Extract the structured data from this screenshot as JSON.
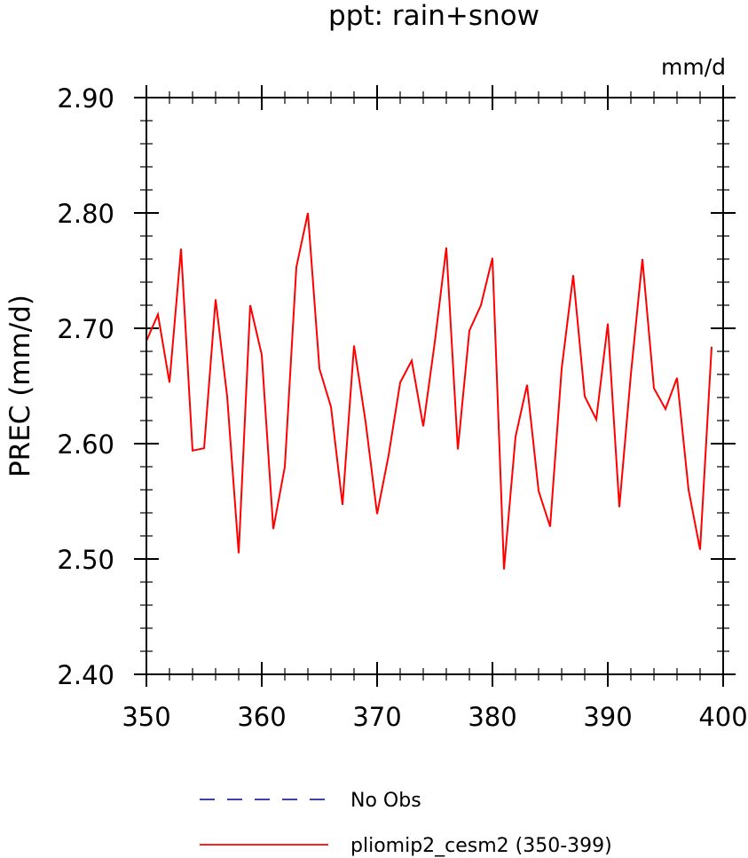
{
  "chart_data": {
    "type": "line",
    "title": "ppt: rain+snow",
    "units": "mm/d",
    "ylabel": "PREC  (mm/d)",
    "xlabel": "",
    "xlim": [
      350,
      400
    ],
    "ylim": [
      2.4,
      2.9
    ],
    "x_ticks": [
      350,
      360,
      370,
      380,
      390,
      400
    ],
    "x_tick_labels": [
      "350",
      "360",
      "370",
      "380",
      "390",
      "400"
    ],
    "y_ticks": [
      2.4,
      2.5,
      2.6,
      2.7,
      2.8,
      2.9
    ],
    "y_tick_labels": [
      "2.40",
      "2.50",
      "2.60",
      "2.70",
      "2.80",
      "2.90"
    ],
    "grid": false,
    "legend_position": "bottom",
    "series": [
      {
        "name": "No Obs",
        "color": "#00008b",
        "style": "dashed",
        "x": [],
        "values": []
      },
      {
        "name": "pliomip2_cesm2 (350-399)",
        "color": "#ff0000",
        "style": "solid",
        "x": [
          350,
          351,
          352,
          353,
          354,
          355,
          356,
          357,
          358,
          359,
          360,
          361,
          362,
          363,
          364,
          365,
          366,
          367,
          368,
          369,
          370,
          371,
          372,
          373,
          374,
          375,
          376,
          377,
          378,
          379,
          380,
          381,
          382,
          383,
          384,
          385,
          386,
          387,
          388,
          389,
          390,
          391,
          392,
          393,
          394,
          395,
          396,
          397,
          398,
          399
        ],
        "values": [
          2.689,
          2.712,
          2.653,
          2.769,
          2.594,
          2.596,
          2.725,
          2.641,
          2.505,
          2.72,
          2.677,
          2.526,
          2.58,
          2.753,
          2.8,
          2.665,
          2.632,
          2.547,
          2.685,
          2.619,
          2.539,
          2.59,
          2.653,
          2.672,
          2.615,
          2.688,
          2.77,
          2.595,
          2.698,
          2.72,
          2.761,
          2.491,
          2.606,
          2.651,
          2.559,
          2.528,
          2.665,
          2.746,
          2.641,
          2.621,
          2.704,
          2.545,
          2.66,
          2.76,
          2.648,
          2.63,
          2.657,
          2.56,
          2.508,
          2.684
        ]
      }
    ]
  }
}
